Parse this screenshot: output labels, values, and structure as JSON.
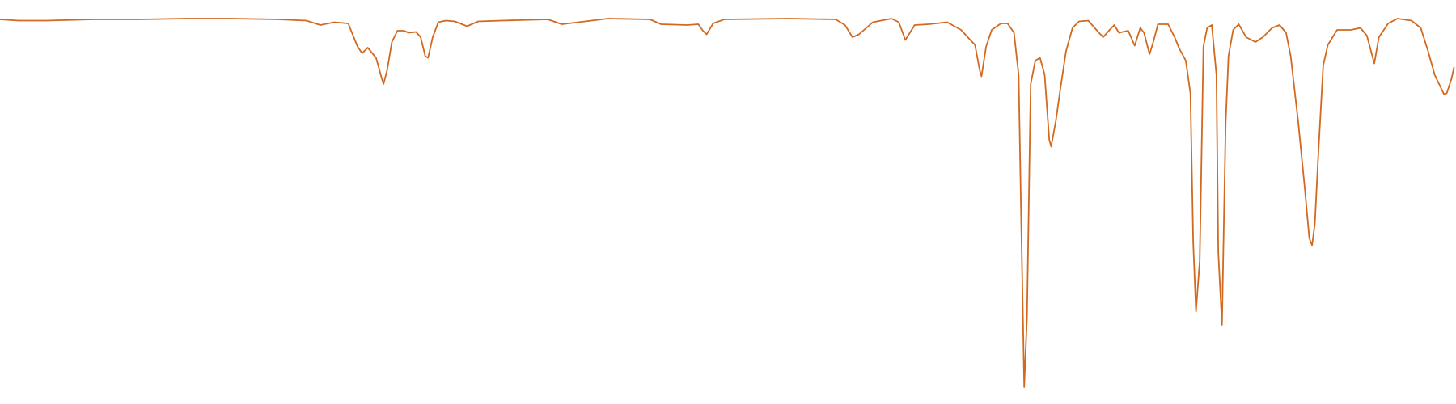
{
  "chart_data": {
    "type": "line",
    "x": [
      0,
      20,
      50,
      100,
      150,
      200,
      250,
      300,
      330,
      345,
      360,
      375,
      385,
      390,
      396,
      405,
      410,
      413,
      417,
      422,
      428,
      435,
      440,
      448,
      453,
      458,
      461,
      466,
      472,
      480,
      490,
      503,
      515,
      540,
      590,
      605,
      630,
      655,
      700,
      712,
      740,
      752,
      757,
      761,
      768,
      780,
      850,
      900,
      910,
      918,
      925,
      940,
      960,
      968,
      975,
      985,
      1000,
      1020,
      1035,
      1045,
      1050,
      1055,
      1057,
      1062,
      1068,
      1078,
      1085,
      1092,
      1097,
      1100,
      1103,
      1106,
      1110,
      1115,
      1120,
      1125,
      1130,
      1132,
      1137,
      1142,
      1148,
      1155,
      1162,
      1172,
      1180,
      1188,
      1195,
      1200,
      1205,
      1215,
      1222,
      1228,
      1232,
      1238,
      1242,
      1247,
      1258,
      1265,
      1270,
      1277,
      1282,
      1285,
      1288,
      1292,
      1296,
      1300,
      1305,
      1310,
      1312,
      1316,
      1320,
      1323,
      1328,
      1334,
      1342,
      1352,
      1360,
      1370,
      1378,
      1385,
      1390,
      1398,
      1405,
      1410,
      1413,
      1416,
      1420,
      1425,
      1430,
      1440,
      1455,
      1465,
      1472,
      1480,
      1485,
      1495,
      1505,
      1520,
      1530,
      1538,
      1545,
      1555,
      1558,
      1563,
      1566
    ],
    "series": [
      {
        "color": "#d2691e",
        "values": [
          95.2,
          94.9,
          94.9,
          95.2,
          95.2,
          95.4,
          95.4,
          95.2,
          94.9,
          93.8,
          94.5,
          94.2,
          88.5,
          86.8,
          88.2,
          85.7,
          81.5,
          79.2,
          82.7,
          89.6,
          92.4,
          92.4,
          91.9,
          92.1,
          90.8,
          86.1,
          85.7,
          90.8,
          94.5,
          94.9,
          94.7,
          93.5,
          94.7,
          94.9,
          95.2,
          94.0,
          94.7,
          95.4,
          95.2,
          94.0,
          93.8,
          94.0,
          92.4,
          91.5,
          94.2,
          95.2,
          95.4,
          95.2,
          93.8,
          90.8,
          91.5,
          94.5,
          95.4,
          94.5,
          90.1,
          93.8,
          94.0,
          94.5,
          92.6,
          90.1,
          88.9,
          82.7,
          81.1,
          88.5,
          92.6,
          94.2,
          94.2,
          91.9,
          81.5,
          42.3,
          4.2,
          21.5,
          79.2,
          85.0,
          85.7,
          81.5,
          65.4,
          63.7,
          70.0,
          78.1,
          87.3,
          93.1,
          94.7,
          94.9,
          92.8,
          90.8,
          92.6,
          93.8,
          91.9,
          92.4,
          88.7,
          93.1,
          91.9,
          86.6,
          89.6,
          94.0,
          94.0,
          90.8,
          88.0,
          85.0,
          76.9,
          40.0,
          22.9,
          35.3,
          88.5,
          93.1,
          93.8,
          81.5,
          37.6,
          19.6,
          70.0,
          86.1,
          92.6,
          94.0,
          90.8,
          89.6,
          90.8,
          93.1,
          93.8,
          91.9,
          86.1,
          70.0,
          53.8,
          41.1,
          39.3,
          44.6,
          63.0,
          83.8,
          88.9,
          92.6,
          92.6,
          93.1,
          91.2,
          84.3,
          90.8,
          94.2,
          95.4,
          94.9,
          93.1,
          87.3,
          81.5,
          76.7,
          76.9,
          80.4,
          83.4
        ]
      }
    ],
    "xlim": [
      0,
      1568
    ],
    "ylim": [
      0,
      100
    ]
  }
}
